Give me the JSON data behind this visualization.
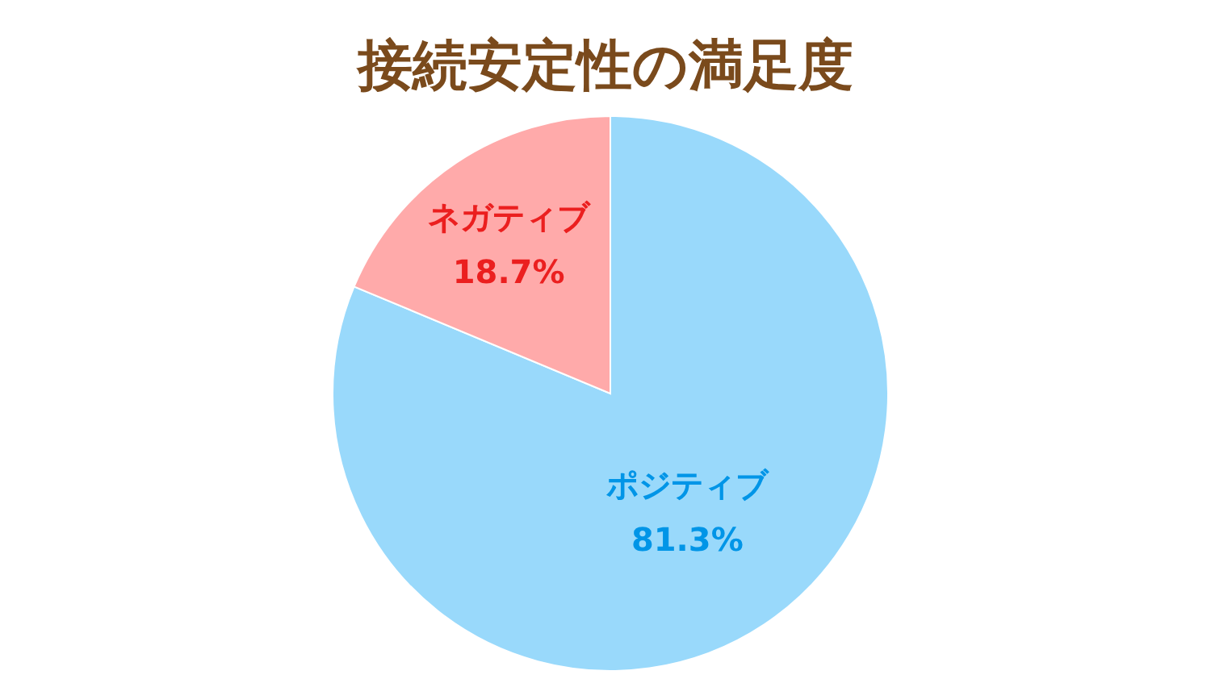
{
  "chart_data": {
    "type": "pie",
    "title": "接続安定性の満足度",
    "categories": [
      "ポジティブ",
      "ネガティブ"
    ],
    "values": [
      81.3,
      18.7
    ],
    "value_labels": [
      "81.3%",
      "18.7%"
    ],
    "colors": [
      "#99d9fb",
      "#ffaaaa"
    ]
  }
}
